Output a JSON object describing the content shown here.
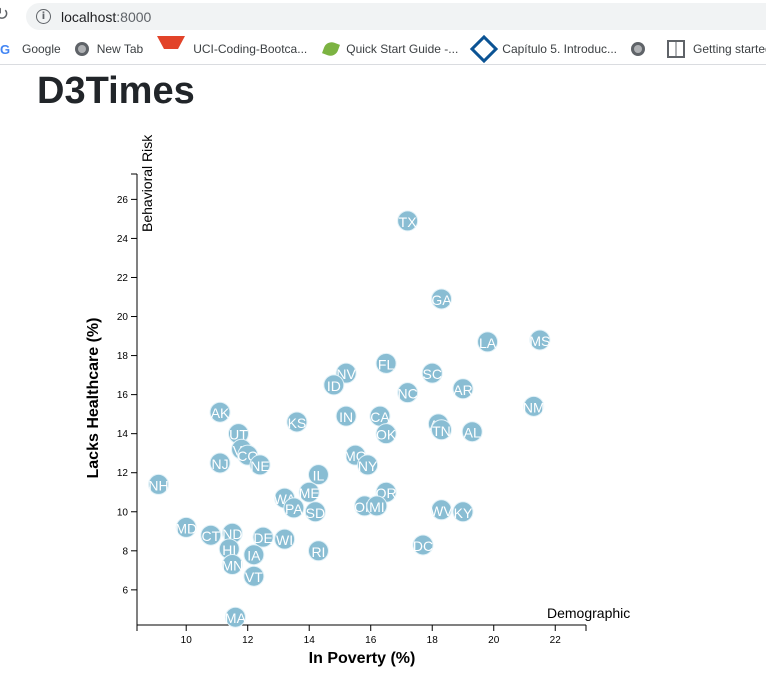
{
  "browser": {
    "url_host": "localhost",
    "url_port": ":8000",
    "bookmarks": [
      {
        "label": "Google",
        "icon": "google-icon"
      },
      {
        "label": "New Tab",
        "icon": "globe-icon"
      },
      {
        "label": "UCI-Coding-Bootca...",
        "icon": "gitlab-icon"
      },
      {
        "label": "Quick Start Guide -...",
        "icon": "leaf-icon"
      },
      {
        "label": "Capítulo 5. Introduc...",
        "icon": "diamond-icon"
      },
      {
        "label": "",
        "icon": "globe-icon"
      },
      {
        "label": "Getting started -",
        "icon": "book-icon"
      }
    ]
  },
  "page": {
    "title": "D3Times"
  },
  "chart_data": {
    "type": "scatter",
    "xlabel": "In Poverty (%)",
    "ylabel": "Lacks Healthcare (%)",
    "inactive_x_label": "Demographic",
    "inactive_y_label": "Behavioral Risk",
    "xlim": [
      8.4,
      23.0
    ],
    "ylim": [
      4.2,
      27.3
    ],
    "x_ticks": [
      10,
      12,
      14,
      16,
      18,
      20,
      22
    ],
    "y_ticks": [
      6,
      8,
      10,
      12,
      14,
      16,
      18,
      20,
      22,
      24,
      26
    ],
    "colors": {
      "point_fill": "#89bdd3",
      "point_stroke": "#e3f2f8",
      "label": "#ffffff"
    },
    "points": [
      {
        "abbr": "TX",
        "x": 17.2,
        "y": 24.9
      },
      {
        "abbr": "GA",
        "x": 18.3,
        "y": 20.9
      },
      {
        "abbr": "LA",
        "x": 19.8,
        "y": 18.7
      },
      {
        "abbr": "MS",
        "x": 21.5,
        "y": 18.8
      },
      {
        "abbr": "FL",
        "x": 16.5,
        "y": 17.6
      },
      {
        "abbr": "SC",
        "x": 18.0,
        "y": 17.1
      },
      {
        "abbr": "NV",
        "x": 15.2,
        "y": 17.1
      },
      {
        "abbr": "ID",
        "x": 14.8,
        "y": 16.5
      },
      {
        "abbr": "NC",
        "x": 17.2,
        "y": 16.1
      },
      {
        "abbr": "AR",
        "x": 19.0,
        "y": 16.3
      },
      {
        "abbr": "NM",
        "x": 21.3,
        "y": 15.4
      },
      {
        "abbr": "AK",
        "x": 11.1,
        "y": 15.1
      },
      {
        "abbr": "KS",
        "x": 13.6,
        "y": 14.6
      },
      {
        "abbr": "IN",
        "x": 15.2,
        "y": 14.9
      },
      {
        "abbr": "CA",
        "x": 16.3,
        "y": 14.9
      },
      {
        "abbr": "AZ",
        "x": 18.2,
        "y": 14.5
      },
      {
        "abbr": "TN",
        "x": 18.3,
        "y": 14.2
      },
      {
        "abbr": "AL",
        "x": 19.3,
        "y": 14.1
      },
      {
        "abbr": "OK",
        "x": 16.5,
        "y": 14.0
      },
      {
        "abbr": "UT",
        "x": 11.7,
        "y": 14.0
      },
      {
        "abbr": "VA",
        "x": 11.8,
        "y": 13.2
      },
      {
        "abbr": "CO",
        "x": 12.0,
        "y": 12.9
      },
      {
        "abbr": "NJ",
        "x": 11.1,
        "y": 12.5
      },
      {
        "abbr": "NE",
        "x": 12.4,
        "y": 12.4
      },
      {
        "abbr": "MO",
        "x": 15.5,
        "y": 12.9
      },
      {
        "abbr": "NY",
        "x": 15.9,
        "y": 12.4
      },
      {
        "abbr": "IL",
        "x": 14.3,
        "y": 11.9
      },
      {
        "abbr": "NH",
        "x": 9.1,
        "y": 11.4
      },
      {
        "abbr": "OR",
        "x": 16.5,
        "y": 11.0
      },
      {
        "abbr": "ME",
        "x": 14.0,
        "y": 11.0
      },
      {
        "abbr": "WA",
        "x": 13.2,
        "y": 10.7
      },
      {
        "abbr": "PA",
        "x": 13.5,
        "y": 10.2
      },
      {
        "abbr": "SD",
        "x": 14.2,
        "y": 10.0
      },
      {
        "abbr": "OH",
        "x": 15.8,
        "y": 10.3
      },
      {
        "abbr": "MI",
        "x": 16.2,
        "y": 10.3
      },
      {
        "abbr": "WV",
        "x": 18.3,
        "y": 10.1
      },
      {
        "abbr": "KY",
        "x": 19.0,
        "y": 10.0
      },
      {
        "abbr": "MD",
        "x": 10.0,
        "y": 9.2
      },
      {
        "abbr": "CT",
        "x": 10.8,
        "y": 8.8
      },
      {
        "abbr": "ND",
        "x": 11.5,
        "y": 8.9
      },
      {
        "abbr": "DE",
        "x": 12.5,
        "y": 8.7
      },
      {
        "abbr": "WI",
        "x": 13.2,
        "y": 8.6
      },
      {
        "abbr": "HI",
        "x": 11.4,
        "y": 8.1
      },
      {
        "abbr": "IA",
        "x": 12.2,
        "y": 7.8
      },
      {
        "abbr": "RI",
        "x": 14.3,
        "y": 8.0
      },
      {
        "abbr": "DC",
        "x": 17.7,
        "y": 8.3
      },
      {
        "abbr": "MN",
        "x": 11.5,
        "y": 7.3
      },
      {
        "abbr": "VT",
        "x": 12.2,
        "y": 6.7
      },
      {
        "abbr": "MA",
        "x": 11.6,
        "y": 4.6
      }
    ]
  }
}
